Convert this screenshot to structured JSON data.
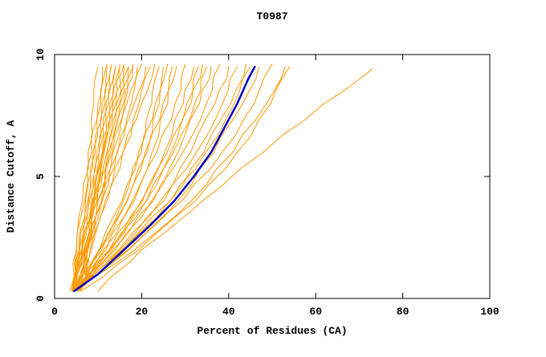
{
  "colors": {
    "model_line": "#ff9900",
    "highlight_line": "#0000bb",
    "axis": "#000000",
    "background": "#ffffff"
  },
  "chart_data": {
    "type": "line",
    "title": "T0987",
    "xlabel": "Percent of Residues (CA)",
    "ylabel": "Distance Cutoff, A",
    "xlim": [
      0,
      100
    ],
    "ylim": [
      0,
      10
    ],
    "x_ticks": [
      0,
      20,
      40,
      60,
      80,
      100
    ],
    "y_ticks": [
      0,
      5,
      10
    ],
    "grid": false,
    "legend": false,
    "series": [
      {
        "name": "model-01",
        "color": "#ff9900",
        "width": 1,
        "y": [
          0.3,
          2,
          4,
          6,
          8,
          9.5
        ],
        "x": [
          4,
          5.1,
          6.4,
          7.7,
          9,
          10
        ]
      },
      {
        "name": "model-02",
        "color": "#ff9900",
        "width": 1,
        "y": [
          0.3,
          2,
          4,
          6,
          8,
          9.5
        ],
        "x": [
          4.5,
          5.7,
          7.1,
          8.5,
          10,
          11
        ]
      },
      {
        "name": "model-03",
        "color": "#ff9900",
        "width": 1,
        "y": [
          0.3,
          2,
          4,
          6,
          8,
          9.6
        ],
        "x": [
          3.5,
          5,
          6.9,
          8.8,
          10.6,
          12
        ]
      },
      {
        "name": "model-04",
        "color": "#ff9900",
        "width": 1,
        "y": [
          0.3,
          2,
          4,
          6,
          8,
          9.5
        ],
        "x": [
          5,
          6.3,
          7.8,
          9.3,
          10.9,
          12
        ]
      },
      {
        "name": "model-05",
        "color": "#ff9900",
        "width": 1,
        "y": [
          0.3,
          2,
          4,
          6,
          8,
          9.5
        ],
        "x": [
          4,
          5.6,
          7.6,
          9.6,
          11.6,
          13
        ]
      },
      {
        "name": "model-06",
        "color": "#ff9900",
        "width": 1,
        "y": [
          0.3,
          2,
          4,
          6,
          8,
          9.6
        ],
        "x": [
          5.5,
          6.9,
          8.5,
          10.2,
          11.8,
          13
        ]
      },
      {
        "name": "model-07",
        "color": "#ff9900",
        "width": 1,
        "y": [
          0.3,
          2,
          4,
          6,
          8,
          9.5
        ],
        "x": [
          4,
          5.8,
          8,
          10.2,
          12.4,
          14
        ]
      },
      {
        "name": "model-08",
        "color": "#ff9900",
        "width": 1,
        "y": [
          0.3,
          2,
          4,
          6,
          8,
          9.5
        ],
        "x": [
          6,
          7.4,
          9.2,
          11,
          12.7,
          14
        ]
      },
      {
        "name": "model-09",
        "color": "#ff9900",
        "width": 1,
        "y": [
          0.3,
          2,
          4,
          6,
          8,
          9.6
        ],
        "x": [
          4.5,
          6.4,
          8.7,
          11,
          13.3,
          15
        ]
      },
      {
        "name": "model-10",
        "color": "#ff9900",
        "width": 1,
        "y": [
          0.3,
          2,
          4,
          6,
          8,
          9.5
        ],
        "x": [
          5,
          6.8,
          9,
          11.2,
          13.4,
          15
        ]
      },
      {
        "name": "model-11",
        "color": "#ff9900",
        "width": 1,
        "y": [
          0.3,
          2,
          4,
          6,
          8,
          9.5
        ],
        "x": [
          4,
          6.2,
          8.8,
          11.4,
          14.1,
          16
        ]
      },
      {
        "name": "model-12",
        "color": "#ff9900",
        "width": 1,
        "y": [
          0.3,
          2,
          4,
          6,
          8,
          9.6
        ],
        "x": [
          5.5,
          7.4,
          9.7,
          12,
          14.3,
          16
        ]
      },
      {
        "name": "model-13",
        "color": "#ff9900",
        "width": 1,
        "y": [
          0.3,
          2,
          4,
          6,
          8,
          9.5
        ],
        "x": [
          4,
          6.3,
          9.2,
          12.1,
          14.9,
          17
        ]
      },
      {
        "name": "model-14",
        "color": "#ff9900",
        "width": 1,
        "y": [
          0.3,
          2,
          4,
          6,
          8,
          9.5
        ],
        "x": [
          5,
          7.2,
          9.8,
          12.4,
          15.1,
          17
        ]
      },
      {
        "name": "model-15",
        "color": "#ff9900",
        "width": 1,
        "y": [
          0.3,
          2,
          4,
          6,
          8,
          9.6
        ],
        "x": [
          4.5,
          6.9,
          9.9,
          12.9,
          15.8,
          18
        ]
      },
      {
        "name": "model-16",
        "color": "#ff9900",
        "width": 1,
        "y": [
          0.3,
          2,
          4,
          6,
          8,
          9.5
        ],
        "x": [
          6,
          8.2,
          10.8,
          13.4,
          16.1,
          18
        ]
      },
      {
        "name": "model-17",
        "color": "#ff9900",
        "width": 1,
        "y": [
          0.3,
          2,
          4,
          6,
          8,
          9.5
        ],
        "x": [
          4,
          6.7,
          10,
          13.3,
          16.6,
          19
        ]
      },
      {
        "name": "model-18",
        "color": "#ff9900",
        "width": 1,
        "y": [
          0.3,
          2,
          4,
          6,
          8,
          9.6
        ],
        "x": [
          5,
          7.7,
          11,
          14.3,
          17.6,
          20
        ]
      },
      {
        "name": "model-19",
        "color": "#ff9900",
        "width": 1,
        "y": [
          0.3,
          2,
          4,
          6,
          8,
          9.5
        ],
        "x": [
          4,
          7.1,
          10.8,
          14.5,
          18.3,
          21
        ]
      },
      {
        "name": "model-20",
        "color": "#ff9900",
        "width": 1,
        "y": [
          0.3,
          2,
          4,
          6,
          8,
          9.5
        ],
        "x": [
          5.5,
          8.5,
          12.1,
          15.7,
          19.4,
          22
        ]
      },
      {
        "name": "model-21",
        "color": "#ff9900",
        "width": 1,
        "y": [
          0.3,
          2,
          4,
          6,
          8,
          9.6
        ],
        "x": [
          4,
          7.4,
          11.6,
          15.8,
          20,
          23
        ]
      },
      {
        "name": "model-22",
        "color": "#ff9900",
        "width": 1,
        "y": [
          0.3,
          2,
          4,
          6,
          8,
          9.5
        ],
        "x": [
          5,
          10.3,
          15.5,
          19.3,
          22.3,
          24
        ]
      },
      {
        "name": "model-23",
        "color": "#ff9900",
        "width": 1,
        "y": [
          0.3,
          2,
          4,
          6,
          8,
          9.5
        ],
        "x": [
          4.5,
          10.2,
          15.8,
          19.9,
          23.2,
          25
        ]
      },
      {
        "name": "model-24",
        "color": "#ff9900",
        "width": 1,
        "y": [
          0.3,
          2,
          4,
          6,
          8,
          9.6
        ],
        "x": [
          5,
          10.9,
          16.6,
          20.8,
          24.1,
          26
        ]
      },
      {
        "name": "model-25",
        "color": "#ff9900",
        "width": 1,
        "y": [
          0.3,
          2,
          4,
          6,
          8,
          9.5
        ],
        "x": [
          4,
          10.4,
          16.7,
          21.3,
          24.9,
          27
        ]
      },
      {
        "name": "model-26",
        "color": "#ff9900",
        "width": 1,
        "y": [
          0.3,
          2,
          4,
          6,
          8,
          9.5
        ],
        "x": [
          5.5,
          11.8,
          17.9,
          22.4,
          26,
          28
        ]
      },
      {
        "name": "model-27",
        "color": "#ff9900",
        "width": 1,
        "y": [
          0.3,
          2,
          4,
          6,
          8,
          9.6
        ],
        "x": [
          4,
          11.3,
          18.3,
          23.5,
          27.7,
          30
        ]
      },
      {
        "name": "model-28",
        "color": "#ff9900",
        "width": 1,
        "y": [
          0.3,
          2,
          4,
          6,
          8,
          9.5
        ],
        "x": [
          5,
          12.6,
          19.9,
          25.3,
          29.6,
          32
        ]
      },
      {
        "name": "model-29",
        "color": "#ff9900",
        "width": 1,
        "y": [
          0.3,
          2,
          4,
          6,
          8,
          9.5
        ],
        "x": [
          4.5,
          12.5,
          20.2,
          25.9,
          30.4,
          33
        ]
      },
      {
        "name": "model-30",
        "color": "#ff9900",
        "width": 1,
        "y": [
          0.3,
          2,
          4,
          6,
          8,
          9.6
        ],
        "x": [
          5,
          13.1,
          21,
          26.8,
          31.4,
          34
        ]
      },
      {
        "name": "model-31",
        "color": "#ff9900",
        "width": 1,
        "y": [
          0.3,
          2,
          4,
          6,
          8,
          9.5
        ],
        "x": [
          4,
          12.7,
          21.1,
          27.3,
          32.2,
          35
        ]
      },
      {
        "name": "model-32",
        "color": "#ff9900",
        "width": 1,
        "y": [
          0.3,
          2,
          4,
          6,
          8,
          9.5
        ],
        "x": [
          5.5,
          14,
          22.3,
          28.4,
          33.3,
          36
        ]
      },
      {
        "name": "model-33",
        "color": "#ff9900",
        "width": 1,
        "y": [
          0.3,
          2,
          4,
          6,
          8,
          9.6
        ],
        "x": [
          4,
          13.5,
          22.7,
          29.5,
          34.9,
          38
        ]
      },
      {
        "name": "model-34",
        "color": "#ff9900",
        "width": 1,
        "y": [
          0.3,
          2,
          4,
          6,
          8,
          9.5
        ],
        "x": [
          5,
          14.8,
          24.3,
          31.3,
          36.9,
          40
        ]
      },
      {
        "name": "model-35",
        "color": "#ff9900",
        "width": 1,
        "y": [
          0.3,
          2,
          4,
          6,
          8,
          9.5
        ],
        "x": [
          4.5,
          15,
          25.1,
          32.6,
          38.6,
          42
        ]
      },
      {
        "name": "model-36",
        "color": "#ff9900",
        "width": 1,
        "y": [
          0.3,
          2,
          4,
          6,
          8,
          9.6
        ],
        "x": [
          5,
          15.9,
          26.5,
          34.3,
          40.5,
          44
        ]
      },
      {
        "name": "model-37",
        "color": "#ff9900",
        "width": 1,
        "y": [
          0.3,
          2,
          4,
          6,
          8,
          9.5
        ],
        "x": [
          4,
          15.5,
          26.6,
          34.8,
          41.3,
          45
        ]
      },
      {
        "name": "model-38",
        "color": "#ff9900",
        "width": 1,
        "y": [
          0.3,
          2,
          4,
          6,
          8,
          9.5
        ],
        "x": [
          5.5,
          17.1,
          28.3,
          36.6,
          43.3,
          47
        ]
      },
      {
        "name": "model-39",
        "color": "#ff9900",
        "width": 1,
        "y": [
          0.3,
          2,
          4,
          6,
          8,
          9.6
        ],
        "x": [
          4,
          16.9,
          29.3,
          38.5,
          45.9,
          50
        ]
      },
      {
        "name": "model-40",
        "color": "#ff9900",
        "width": 1,
        "y": [
          0.3,
          2,
          4,
          6,
          8,
          9.5
        ],
        "x": [
          5,
          18.4,
          31.4,
          41,
          48.7,
          53
        ]
      },
      {
        "name": "model-41",
        "color": "#ff9900",
        "width": 1,
        "y": [
          0.3,
          2,
          4,
          6,
          8,
          9.5
        ],
        "x": [
          6,
          19.4,
          32.4,
          42,
          49.7,
          54
        ]
      },
      {
        "name": "model-outlier",
        "color": "#ff9900",
        "width": 1,
        "y": [
          0.3,
          2,
          4,
          6,
          8,
          9.4
        ],
        "x": [
          10,
          20,
          34,
          48,
          62,
          73
        ]
      },
      {
        "name": "highlighted-model",
        "color": "#0000bb",
        "width": 2.5,
        "jitter": false,
        "y": [
          0.3,
          1,
          2,
          3,
          4,
          5,
          6,
          7,
          8,
          9,
          9.5
        ],
        "x": [
          4.5,
          10,
          16,
          22,
          27.5,
          32,
          36,
          39,
          42,
          44.5,
          46
        ]
      }
    ]
  }
}
